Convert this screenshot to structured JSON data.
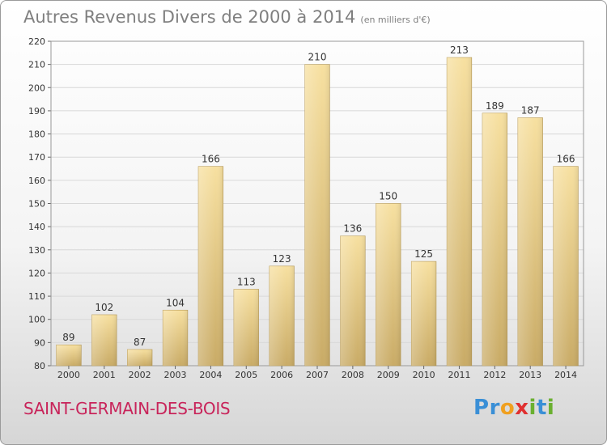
{
  "chart_data": {
    "type": "bar",
    "title": "Autres Revenus Divers de 2000 à 2014",
    "subtitle": "(en milliers d'€)",
    "categories": [
      "2000",
      "2001",
      "2002",
      "2003",
      "2004",
      "2005",
      "2006",
      "2007",
      "2008",
      "2009",
      "2010",
      "2011",
      "2012",
      "2013",
      "2014"
    ],
    "values": [
      89,
      102,
      87,
      104,
      166,
      113,
      123,
      210,
      136,
      150,
      125,
      213,
      189,
      187,
      166
    ],
    "ylim": [
      80,
      220
    ],
    "yticks": [
      80,
      90,
      100,
      110,
      120,
      130,
      140,
      150,
      160,
      170,
      180,
      190,
      200,
      210,
      220
    ],
    "grid": true,
    "bar_color_light": "#f7e0a0",
    "bar_color_dark": "#c9ab66"
  },
  "location": "SAINT-GERMAIN-DES-BOIS",
  "logo": {
    "letters": [
      "P",
      "r",
      "o",
      "x",
      "i",
      "t",
      "i"
    ],
    "colors": [
      "#3a8fd6",
      "#3a8fd6",
      "#f0a020",
      "#e03030",
      "#6ab030",
      "#3a8fd6",
      "#6ab030"
    ]
  }
}
